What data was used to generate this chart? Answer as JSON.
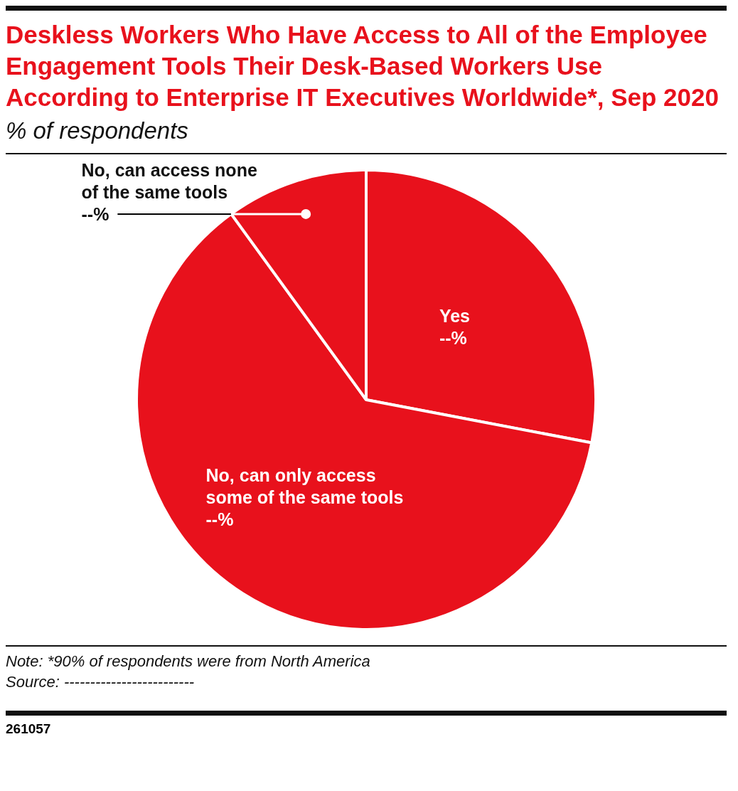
{
  "chart_data": {
    "type": "pie",
    "title": "Deskless Workers Who Have Access to All of the Employee Engagement Tools Their Desk-Based Workers Use According to Enterprise IT Executives Worldwide*, Sep 2020",
    "subtitle": "% of respondents",
    "categories": [
      "Yes",
      "No, can only access some of the same tools",
      "No, can access none of the same tools"
    ],
    "values": [
      28,
      62,
      10
    ],
    "colors": [
      "#e8111c",
      "#e8111c",
      "#e8111c"
    ],
    "value_labels": [
      "--%",
      "--%",
      "--%"
    ],
    "legend": false,
    "annotations": [
      "Note: *90% of respondents were from North America",
      "Source: -------------------------",
      "261057"
    ]
  }
}
